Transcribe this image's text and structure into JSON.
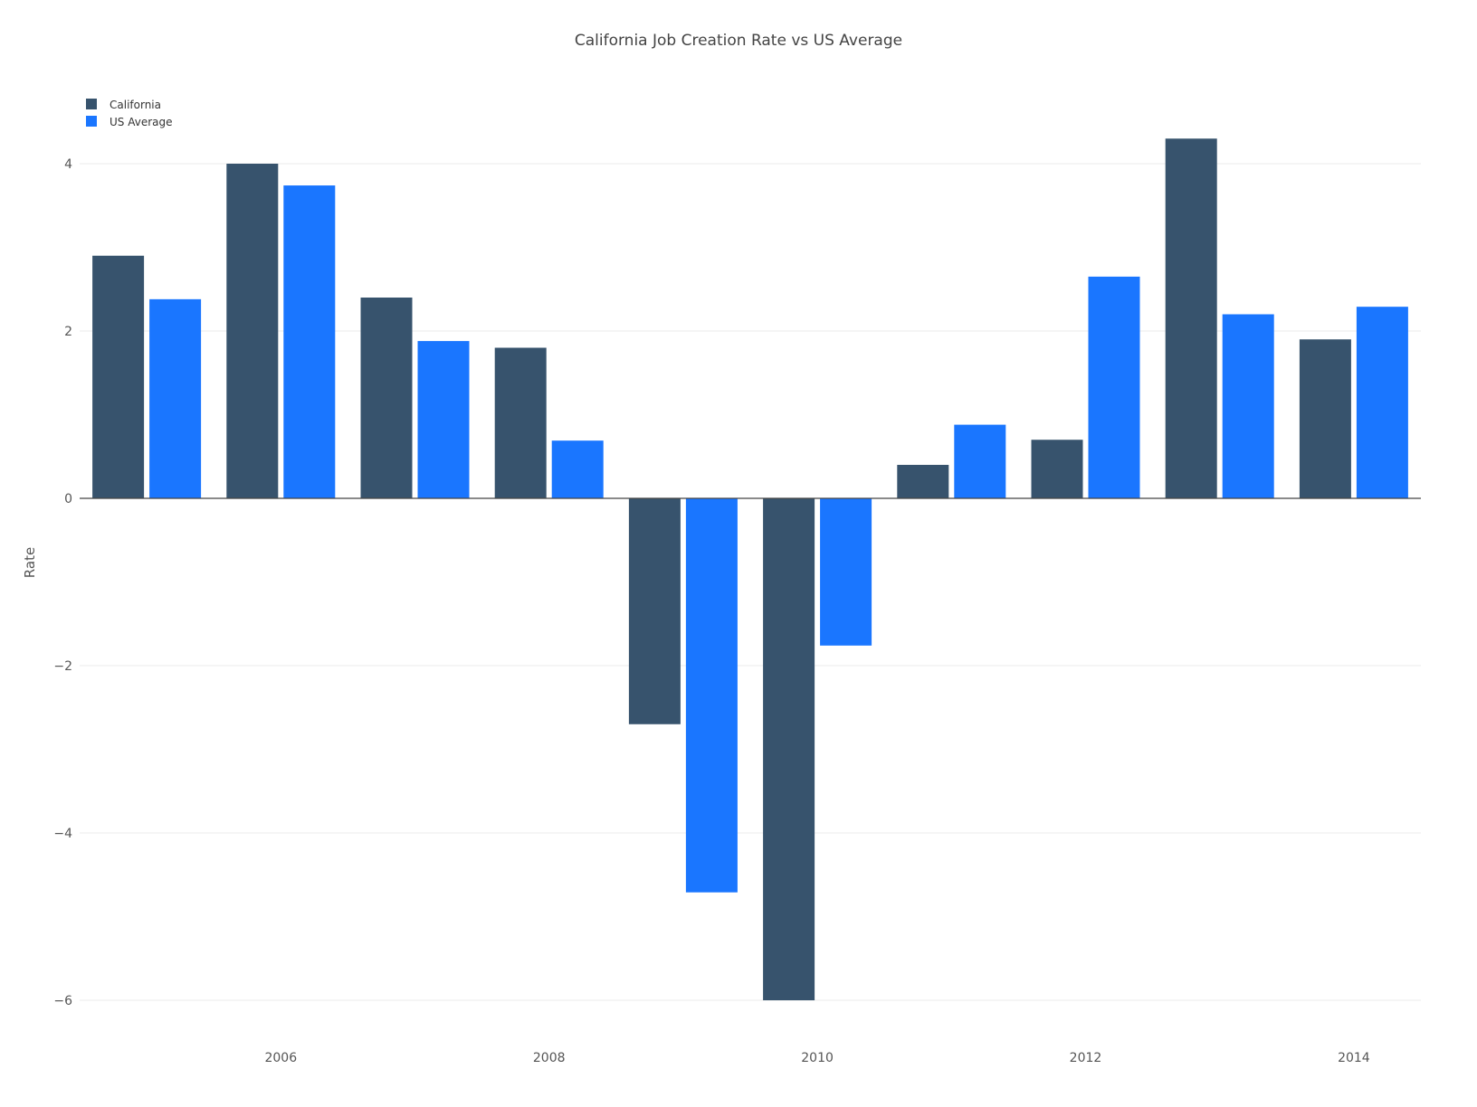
{
  "chart_data": {
    "type": "bar",
    "title": "California Job Creation Rate vs US Average",
    "xlabel": "",
    "ylabel": "Rate",
    "x": [
      2005,
      2006,
      2007,
      2008,
      2009,
      2010,
      2011,
      2012,
      2013,
      2014
    ],
    "x_tick_labels": [
      "2006",
      "2008",
      "2010",
      "2012",
      "2014"
    ],
    "y_tick_labels": [
      "4",
      "2",
      "0",
      "−2",
      "−4",
      "−6"
    ],
    "y_ticks": [
      4,
      2,
      0,
      -2,
      -4,
      -6
    ],
    "ylim": [
      -6,
      4.5
    ],
    "grid": true,
    "legend_position": "top-left",
    "series": [
      {
        "name": "California",
        "color": "#37536D",
        "values": [
          2.9,
          4.0,
          2.4,
          1.8,
          -2.7,
          -6.0,
          0.4,
          0.7,
          4.3,
          1.9
        ]
      },
      {
        "name": "US Average",
        "color": "#1A76FF",
        "values": [
          2.38,
          3.74,
          1.88,
          0.69,
          -4.71,
          -1.76,
          0.88,
          2.65,
          2.2,
          2.29
        ]
      }
    ]
  }
}
